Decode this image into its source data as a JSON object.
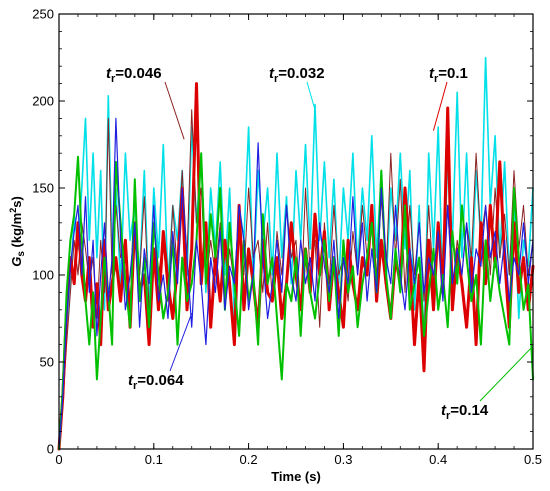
{
  "chart_data": {
    "type": "line",
    "title": "",
    "xlabel": "Time (s)",
    "ylabel": "G",
    "ylabel_sub": "s",
    "ylabel_units": " (kg/m",
    "ylabel_units_sup": "2",
    "ylabel_units_end": "s)",
    "xlim": [
      0,
      0.5
    ],
    "ylim": [
      0,
      250
    ],
    "xticks": [
      "0",
      "0.1",
      "0.2",
      "0.3",
      "0.4",
      "0.5"
    ],
    "yticks": [
      "0",
      "50",
      "100",
      "150",
      "200",
      "250"
    ],
    "grid": false,
    "legend": "none",
    "annotations": [
      {
        "main": "t",
        "sub": "r",
        "value": "=0.046",
        "series": "tr=0.046"
      },
      {
        "main": "t",
        "sub": "r",
        "value": "=0.032",
        "series": "tr=0.032"
      },
      {
        "main": "t",
        "sub": "r",
        "value": "=0.1",
        "series": "tr=0.1"
      },
      {
        "main": "t",
        "sub": "r",
        "value": "=0.064",
        "series": "tr=0.064"
      },
      {
        "main": "t",
        "sub": "r",
        "value": "=0.14",
        "series": "tr=0.14"
      }
    ],
    "series": [
      {
        "name": "tr=0.032",
        "color": "#00e0e8",
        "stroke": 1.6,
        "x": [
          0,
          0.004,
          0.008,
          0.012,
          0.016,
          0.02,
          0.024,
          0.028,
          0.032,
          0.036,
          0.04,
          0.044,
          0.048,
          0.052,
          0.056,
          0.06,
          0.065,
          0.07,
          0.075,
          0.08,
          0.085,
          0.09,
          0.095,
          0.1,
          0.105,
          0.11,
          0.115,
          0.12,
          0.125,
          0.13,
          0.135,
          0.14,
          0.145,
          0.15,
          0.155,
          0.16,
          0.165,
          0.17,
          0.175,
          0.18,
          0.185,
          0.19,
          0.195,
          0.2,
          0.205,
          0.21,
          0.215,
          0.22,
          0.225,
          0.23,
          0.235,
          0.24,
          0.245,
          0.25,
          0.255,
          0.26,
          0.265,
          0.27,
          0.275,
          0.28,
          0.285,
          0.29,
          0.295,
          0.3,
          0.305,
          0.31,
          0.315,
          0.32,
          0.325,
          0.33,
          0.335,
          0.34,
          0.345,
          0.35,
          0.355,
          0.36,
          0.365,
          0.37,
          0.375,
          0.38,
          0.385,
          0.39,
          0.395,
          0.4,
          0.405,
          0.41,
          0.415,
          0.42,
          0.425,
          0.43,
          0.435,
          0.44,
          0.445,
          0.45,
          0.455,
          0.46,
          0.465,
          0.47,
          0.475,
          0.48,
          0.485,
          0.49,
          0.495,
          0.5
        ],
        "y": [
          0,
          30,
          70,
          95,
          135,
          115,
          150,
          190,
          120,
          170,
          110,
          160,
          80,
          203,
          110,
          150,
          95,
          170,
          120,
          140,
          100,
          160,
          80,
          150,
          110,
          175,
          95,
          140,
          120,
          160,
          100,
          185,
          130,
          170,
          90,
          150,
          115,
          165,
          100,
          150,
          75,
          140,
          120,
          185,
          95,
          160,
          120,
          150,
          100,
          170,
          110,
          145,
          95,
          160,
          120,
          175,
          115,
          198,
          120,
          165,
          110,
          155,
          95,
          150,
          120,
          170,
          105,
          150,
          120,
          180,
          110,
          160,
          95,
          150,
          120,
          170,
          115,
          160,
          80,
          140,
          60,
          170,
          115,
          185,
          90,
          165,
          120,
          205,
          110,
          170,
          95,
          160,
          120,
          225,
          140,
          180,
          110,
          165,
          100,
          140,
          75,
          120,
          105,
          150
        ]
      },
      {
        "name": "tr=0.046",
        "color": "#8b2323",
        "stroke": 1.0,
        "x": [
          0,
          0.004,
          0.008,
          0.012,
          0.016,
          0.02,
          0.024,
          0.028,
          0.032,
          0.036,
          0.04,
          0.044,
          0.048,
          0.052,
          0.056,
          0.06,
          0.065,
          0.07,
          0.075,
          0.08,
          0.085,
          0.09,
          0.095,
          0.1,
          0.105,
          0.11,
          0.115,
          0.12,
          0.125,
          0.13,
          0.135,
          0.14,
          0.145,
          0.15,
          0.155,
          0.16,
          0.165,
          0.17,
          0.175,
          0.18,
          0.185,
          0.19,
          0.195,
          0.2,
          0.205,
          0.21,
          0.215,
          0.22,
          0.225,
          0.23,
          0.235,
          0.24,
          0.245,
          0.25,
          0.255,
          0.26,
          0.265,
          0.27,
          0.275,
          0.28,
          0.285,
          0.29,
          0.295,
          0.3,
          0.305,
          0.31,
          0.315,
          0.32,
          0.325,
          0.33,
          0.335,
          0.34,
          0.345,
          0.35,
          0.355,
          0.36,
          0.365,
          0.37,
          0.375,
          0.38,
          0.385,
          0.39,
          0.395,
          0.4,
          0.405,
          0.41,
          0.415,
          0.42,
          0.425,
          0.43,
          0.435,
          0.44,
          0.445,
          0.45,
          0.455,
          0.46,
          0.465,
          0.47,
          0.475,
          0.48,
          0.485,
          0.49,
          0.495,
          0.5
        ],
        "y": [
          0,
          25,
          60,
          90,
          120,
          100,
          130,
          115,
          95,
          110,
          75,
          120,
          90,
          190,
          100,
          140,
          110,
          120,
          85,
          130,
          100,
          145,
          80,
          115,
          100,
          120,
          85,
          140,
          100,
          160,
          110,
          195,
          130,
          150,
          95,
          120,
          100,
          130,
          85,
          115,
          95,
          140,
          100,
          150,
          110,
          120,
          90,
          130,
          85,
          125,
          100,
          140,
          110,
          120,
          80,
          150,
          100,
          120,
          70,
          130,
          95,
          140,
          100,
          110,
          85,
          125,
          100,
          140,
          110,
          135,
          95,
          145,
          100,
          170,
          110,
          155,
          90,
          140,
          100,
          130,
          85,
          140,
          95,
          120,
          100,
          140,
          90,
          120,
          100,
          130,
          110,
          170,
          120,
          140,
          100,
          150,
          110,
          135,
          100,
          160,
          115,
          140,
          100,
          120
        ]
      },
      {
        "name": "tr=0.1",
        "color": "#dd0000",
        "stroke": 3.0,
        "x": [
          0,
          0.004,
          0.008,
          0.012,
          0.016,
          0.02,
          0.024,
          0.028,
          0.032,
          0.036,
          0.04,
          0.044,
          0.048,
          0.052,
          0.056,
          0.06,
          0.065,
          0.07,
          0.075,
          0.08,
          0.085,
          0.09,
          0.095,
          0.1,
          0.105,
          0.11,
          0.115,
          0.12,
          0.125,
          0.13,
          0.135,
          0.14,
          0.145,
          0.15,
          0.155,
          0.16,
          0.165,
          0.17,
          0.175,
          0.18,
          0.185,
          0.19,
          0.195,
          0.2,
          0.205,
          0.21,
          0.215,
          0.22,
          0.225,
          0.23,
          0.235,
          0.24,
          0.245,
          0.25,
          0.255,
          0.26,
          0.265,
          0.27,
          0.275,
          0.28,
          0.285,
          0.29,
          0.295,
          0.3,
          0.305,
          0.31,
          0.315,
          0.32,
          0.325,
          0.33,
          0.335,
          0.34,
          0.345,
          0.35,
          0.355,
          0.36,
          0.365,
          0.37,
          0.375,
          0.38,
          0.385,
          0.39,
          0.395,
          0.4,
          0.405,
          0.41,
          0.415,
          0.42,
          0.425,
          0.43,
          0.435,
          0.44,
          0.445,
          0.45,
          0.455,
          0.46,
          0.465,
          0.47,
          0.475,
          0.48,
          0.485,
          0.49,
          0.495,
          0.5
        ],
        "y": [
          0,
          30,
          80,
          110,
          95,
          130,
          100,
          85,
          110,
          70,
          95,
          60,
          120,
          80,
          95,
          110,
          85,
          120,
          70,
          130,
          90,
          100,
          60,
          115,
          80,
          125,
          95,
          75,
          105,
          150,
          80,
          115,
          210,
          95,
          130,
          70,
          110,
          85,
          120,
          95,
          60,
          140,
          80,
          115,
          95,
          70,
          120,
          90,
          85,
          110,
          75,
          95,
          130,
          100,
          80,
          115,
          90,
          135,
          100,
          125,
          80,
          110,
          90,
          70,
          120,
          95,
          80,
          110,
          100,
          140,
          85,
          120,
          95,
          75,
          110,
          95,
          150,
          110,
          60,
          100,
          45,
          120,
          80,
          130,
          90,
          196,
          80,
          115,
          95,
          70,
          110,
          60,
          130,
          95,
          140,
          105,
          165,
          110,
          70,
          130,
          90,
          110,
          80,
          105
        ]
      },
      {
        "name": "tr=0.14",
        "color": "#00c000",
        "stroke": 2.0,
        "x": [
          0,
          0.004,
          0.008,
          0.012,
          0.016,
          0.02,
          0.024,
          0.028,
          0.032,
          0.036,
          0.04,
          0.044,
          0.048,
          0.052,
          0.056,
          0.06,
          0.065,
          0.07,
          0.075,
          0.08,
          0.085,
          0.09,
          0.095,
          0.1,
          0.105,
          0.11,
          0.115,
          0.12,
          0.125,
          0.13,
          0.135,
          0.14,
          0.145,
          0.15,
          0.155,
          0.16,
          0.165,
          0.17,
          0.175,
          0.18,
          0.185,
          0.19,
          0.195,
          0.2,
          0.205,
          0.21,
          0.215,
          0.22,
          0.225,
          0.23,
          0.235,
          0.24,
          0.245,
          0.25,
          0.255,
          0.26,
          0.265,
          0.27,
          0.275,
          0.28,
          0.285,
          0.29,
          0.295,
          0.3,
          0.305,
          0.31,
          0.315,
          0.32,
          0.325,
          0.33,
          0.335,
          0.34,
          0.345,
          0.35,
          0.355,
          0.36,
          0.365,
          0.37,
          0.375,
          0.38,
          0.385,
          0.39,
          0.395,
          0.4,
          0.405,
          0.41,
          0.415,
          0.42,
          0.425,
          0.43,
          0.435,
          0.44,
          0.445,
          0.45,
          0.455,
          0.46,
          0.465,
          0.47,
          0.475,
          0.48,
          0.485,
          0.49,
          0.495,
          0.5
        ],
        "y": [
          0,
          35,
          90,
          120,
          135,
          168,
          120,
          85,
          60,
          90,
          40,
          75,
          110,
          90,
          60,
          165,
          130,
          95,
          70,
          155,
          85,
          110,
          70,
          130,
          100,
          75,
          90,
          120,
          60,
          110,
          85,
          95,
          120,
          170,
          95,
          135,
          110,
          150,
          80,
          130,
          95,
          65,
          120,
          85,
          100,
          60,
          135,
          95,
          110,
          75,
          40,
          95,
          85,
          110,
          65,
          115,
          90,
          75,
          100,
          120,
          85,
          110,
          65,
          120,
          90,
          105,
          70,
          95,
          110,
          130,
          90,
          160,
          100,
          75,
          115,
          90,
          140,
          80,
          95,
          110,
          65,
          90,
          115,
          80,
          100,
          70,
          125,
          95,
          140,
          110,
          85,
          100,
          60,
          120,
          85,
          110,
          90,
          75,
          60,
          150,
          110,
          80,
          95,
          40
        ]
      },
      {
        "name": "tr=0.064",
        "color": "#2020e0",
        "stroke": 1.2,
        "x": [
          0,
          0.004,
          0.008,
          0.012,
          0.016,
          0.02,
          0.024,
          0.028,
          0.032,
          0.036,
          0.04,
          0.044,
          0.048,
          0.052,
          0.056,
          0.06,
          0.065,
          0.07,
          0.075,
          0.08,
          0.085,
          0.09,
          0.095,
          0.1,
          0.105,
          0.11,
          0.115,
          0.12,
          0.125,
          0.13,
          0.135,
          0.14,
          0.145,
          0.15,
          0.155,
          0.16,
          0.165,
          0.17,
          0.175,
          0.18,
          0.185,
          0.19,
          0.195,
          0.2,
          0.205,
          0.21,
          0.215,
          0.22,
          0.225,
          0.23,
          0.235,
          0.24,
          0.245,
          0.25,
          0.255,
          0.26,
          0.265,
          0.27,
          0.275,
          0.28,
          0.285,
          0.29,
          0.295,
          0.3,
          0.305,
          0.31,
          0.315,
          0.32,
          0.325,
          0.33,
          0.335,
          0.34,
          0.345,
          0.35,
          0.355,
          0.36,
          0.365,
          0.37,
          0.375,
          0.38,
          0.385,
          0.39,
          0.395,
          0.4,
          0.405,
          0.41,
          0.415,
          0.42,
          0.425,
          0.43,
          0.435,
          0.44,
          0.445,
          0.45,
          0.455,
          0.46,
          0.465,
          0.47,
          0.475,
          0.48,
          0.485,
          0.49,
          0.495,
          0.5
        ],
        "y": [
          0,
          30,
          75,
          105,
          125,
          140,
          100,
          145,
          90,
          120,
          65,
          100,
          130,
          85,
          110,
          190,
          120,
          80,
          100,
          130,
          70,
          115,
          95,
          140,
          85,
          100,
          75,
          125,
          95,
          150,
          110,
          70,
          120,
          95,
          60,
          110,
          90,
          125,
          80,
          105,
          95,
          140,
          120,
          80,
          100,
          176,
          110,
          75,
          95,
          120,
          90,
          140,
          100,
          85,
          120,
          95,
          110,
          85,
          130,
          105,
          90,
          120,
          75,
          110,
          95,
          145,
          100,
          130,
          85,
          115,
          90,
          150,
          110,
          95,
          140,
          100,
          80,
          115,
          95,
          130,
          90,
          110,
          100,
          125,
          85,
          140,
          95,
          115,
          100,
          130,
          90,
          115,
          105,
          140,
          110,
          125,
          95,
          120,
          85,
          110,
          100,
          130,
          95,
          120
        ]
      }
    ]
  }
}
